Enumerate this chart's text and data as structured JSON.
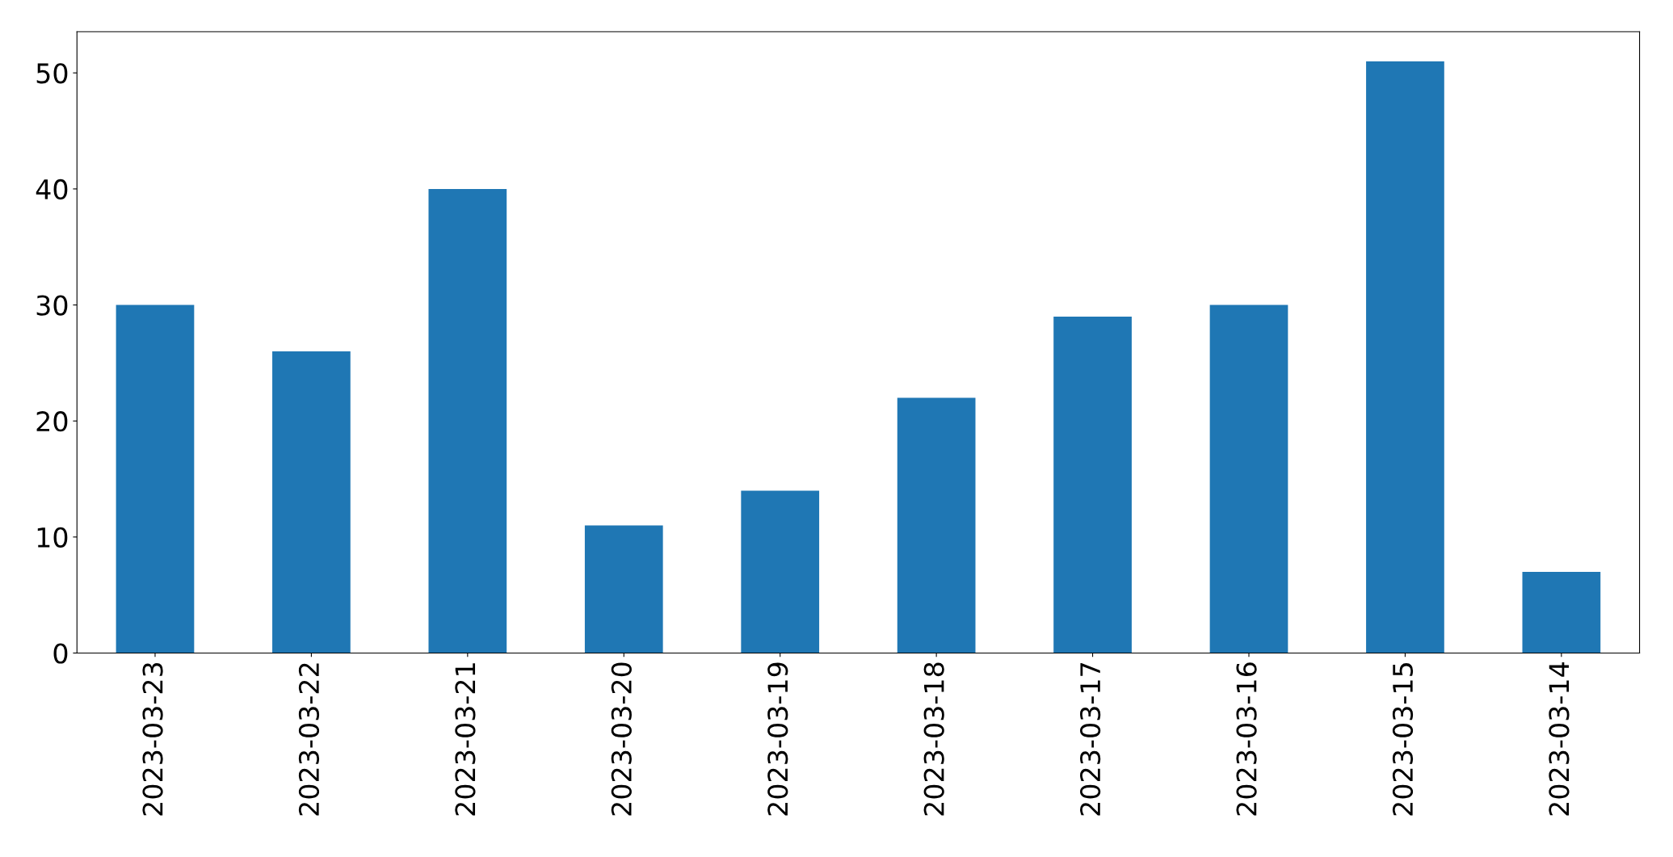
{
  "chart_data": {
    "type": "bar",
    "categories": [
      "2023-03-23",
      "2023-03-22",
      "2023-03-21",
      "2023-03-20",
      "2023-03-19",
      "2023-03-18",
      "2023-03-17",
      "2023-03-16",
      "2023-03-15",
      "2023-03-14"
    ],
    "values": [
      30,
      26,
      40,
      11,
      14,
      22,
      29,
      30,
      51,
      7
    ],
    "color": "#1f77b4",
    "ylim": [
      0,
      53.55
    ],
    "yticks": [
      0,
      10,
      20,
      30,
      40,
      50
    ],
    "grid": false
  }
}
